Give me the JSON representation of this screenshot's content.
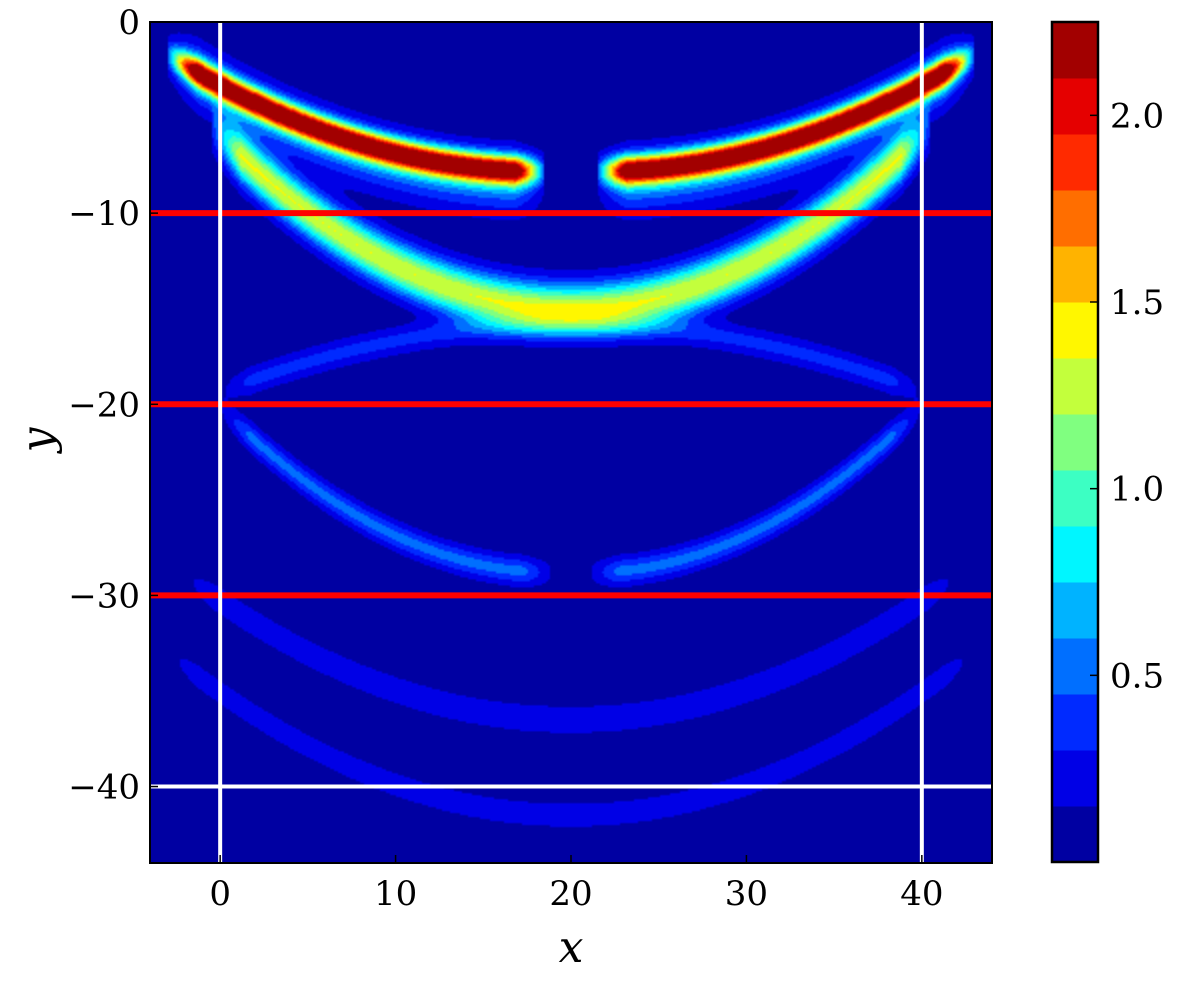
{
  "chart_data": {
    "type": "heatmap",
    "title": "",
    "xlabel": "x",
    "ylabel": "y",
    "xlim": [
      -4,
      44
    ],
    "ylim": [
      -44,
      0
    ],
    "x_ticks": [
      0,
      10,
      20,
      30,
      40
    ],
    "x_tick_labels": [
      "0",
      "10",
      "20",
      "30",
      "40"
    ],
    "y_ticks": [
      0,
      -10,
      -20,
      -30,
      -40
    ],
    "y_tick_labels": [
      "0",
      "−10",
      "−20",
      "−30",
      "−40"
    ],
    "colormap": "jet",
    "colorbar": {
      "min": 0,
      "max": 2.25,
      "levels": 15,
      "ticks": [
        0.5,
        1.0,
        1.5,
        2.0
      ],
      "tick_labels": [
        "0.5",
        "1.0",
        "1.5",
        "2.0"
      ]
    },
    "background_value": 0.05,
    "wavefronts": [
      {
        "name": "primary-arc",
        "vertex": [
          20,
          -15
        ],
        "half_width": 20,
        "rise": 9,
        "x_range": [
          -0.5,
          40.5
        ],
        "amplitude": 1.3,
        "thickness": 0.9
      },
      {
        "name": "upper-left-arc",
        "vertex": [
          18.5,
          -7.8
        ],
        "half_width": 21,
        "rise": 5.8,
        "x_range": [
          -3,
          18.5
        ],
        "amplitude": 2.2,
        "thickness": 0.5
      },
      {
        "name": "upper-right-arc",
        "vertex": [
          21.5,
          -7.8
        ],
        "half_width": 21,
        "rise": 5.8,
        "x_range": [
          21.5,
          43
        ],
        "amplitude": 2.2,
        "thickness": 0.5
      },
      {
        "name": "upper-left-halo",
        "vertex": [
          18.5,
          -8.4
        ],
        "half_width": 21,
        "rise": 6.3,
        "x_range": [
          -3,
          18.5
        ],
        "amplitude": 0.55,
        "thickness": 1.1
      },
      {
        "name": "upper-right-halo",
        "vertex": [
          21.5,
          -8.4
        ],
        "half_width": 21,
        "rise": 6.3,
        "x_range": [
          21.5,
          43
        ],
        "amplitude": 0.55,
        "thickness": 1.1
      },
      {
        "name": "mid-left-arc",
        "vertex": [
          19,
          -28.8
        ],
        "half_width": 19,
        "rise": 8.6,
        "x_range": [
          0,
          19
        ],
        "amplitude": 0.45,
        "thickness": 0.5
      },
      {
        "name": "mid-right-arc",
        "vertex": [
          21,
          -28.8
        ],
        "half_width": 19,
        "rise": 8.6,
        "x_range": [
          21,
          40
        ],
        "amplitude": 0.45,
        "thickness": 0.5
      },
      {
        "name": "faint-upper-arc",
        "vertex": [
          20,
          -15.8
        ],
        "half_width": 26,
        "rise": -6,
        "x_range": [
          0,
          40
        ],
        "amplitude": 0.3,
        "thickness": 0.5
      },
      {
        "name": "deep-arc-1",
        "vertex": [
          20,
          -36.5
        ],
        "half_width": 22,
        "rise": 7.5,
        "x_range": [
          -2,
          42
        ],
        "amplitude": 0.25,
        "thickness": 0.5
      },
      {
        "name": "deep-arc-2",
        "vertex": [
          20,
          -41.5
        ],
        "half_width": 23,
        "rise": 8.5,
        "x_range": [
          -3,
          43
        ],
        "amplitude": 0.2,
        "thickness": 0.5
      }
    ],
    "red_lines": [
      {
        "y": -10,
        "color": "#ff0000"
      },
      {
        "y": -20,
        "color": "#ff0000"
      },
      {
        "y": -30,
        "color": "#ff0000"
      }
    ],
    "white_box": {
      "x0": 0,
      "x1": 40,
      "y_bottom": -40,
      "color": "#ffffff"
    }
  }
}
